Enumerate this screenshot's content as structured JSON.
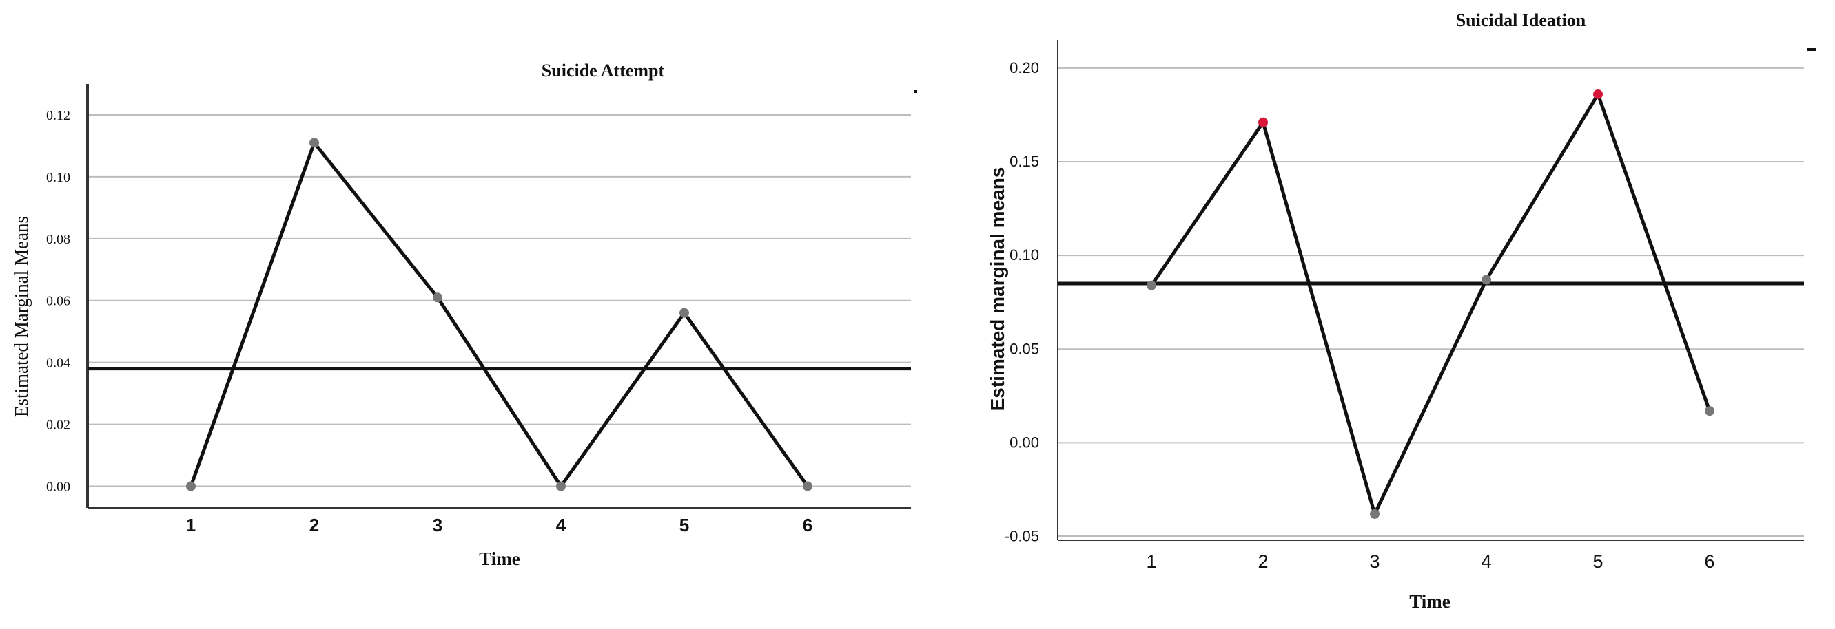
{
  "chart_data": [
    {
      "type": "line",
      "title": "Suicide Attempt",
      "xlabel": "Time",
      "ylabel": "Estimated Marginal Means",
      "categories": [
        "1",
        "2",
        "3",
        "4",
        "5",
        "6"
      ],
      "values": [
        0.0,
        0.111,
        0.061,
        0.0,
        0.056,
        0.0
      ],
      "ylim": [
        -0.007,
        0.13
      ],
      "yticks": [
        "0.00",
        "0.02",
        "0.04",
        "0.06",
        "0.08",
        "0.10",
        "0.12"
      ],
      "ytick_values": [
        0.0,
        0.02,
        0.04,
        0.06,
        0.08,
        0.1,
        0.12
      ],
      "reference_line": 0.038,
      "grid": true,
      "marker_colors": [
        "#777777",
        "#777777",
        "#777777",
        "#777777",
        "#777777",
        "#777777"
      ],
      "line_color": "#111111"
    },
    {
      "type": "line",
      "title": "Suicidal Ideation",
      "xlabel": "Time",
      "ylabel": "Estimated marginal means",
      "categories": [
        "1",
        "2",
        "3",
        "4",
        "5",
        "6"
      ],
      "values": [
        0.084,
        0.171,
        -0.038,
        0.087,
        0.186,
        0.017
      ],
      "ylim": [
        -0.052,
        0.215
      ],
      "yticks": [
        "-0.05",
        "0.00",
        "0.05",
        "0.10",
        "0.15",
        "0.20"
      ],
      "ytick_values": [
        -0.05,
        0.0,
        0.05,
        0.1,
        0.15,
        0.2
      ],
      "reference_line": 0.085,
      "grid": true,
      "marker_colors": [
        "#777777",
        "#d6173a",
        "#777777",
        "#777777",
        "#d6173a",
        "#777777"
      ],
      "line_color": "#111111"
    }
  ]
}
